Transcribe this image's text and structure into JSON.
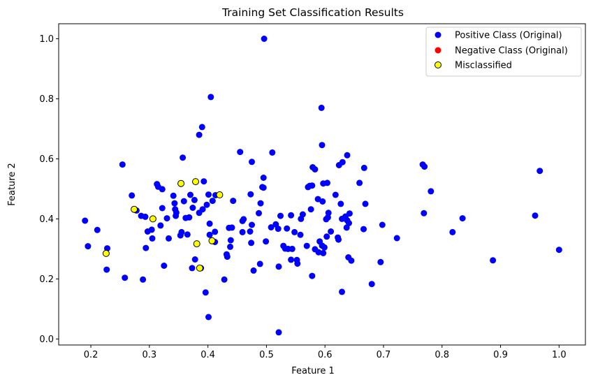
{
  "chart_data": {
    "type": "scatter",
    "title": "Training Set Classification Results",
    "xlabel": "Feature 1",
    "ylabel": "Feature 2",
    "xlim": [
      0.145,
      1.045
    ],
    "ylim": [
      -0.02,
      1.05
    ],
    "xticks": [
      "0.2",
      "0.3",
      "0.4",
      "0.5",
      "0.6",
      "0.7",
      "0.8",
      "0.9",
      "1.0"
    ],
    "yticks": [
      "0.0",
      "0.2",
      "0.4",
      "0.6",
      "0.8",
      "1.0"
    ],
    "grid": false,
    "legend_position": "top-right",
    "series": [
      {
        "name": "Positive Class (Original)",
        "color": "#0000ff",
        "points": [
          [
            0.19,
            0.394
          ],
          [
            0.195,
            0.309
          ],
          [
            0.211,
            0.363
          ],
          [
            0.227,
            0.231
          ],
          [
            0.228,
            0.302
          ],
          [
            0.254,
            0.581
          ],
          [
            0.258,
            0.204
          ],
          [
            0.27,
            0.478
          ],
          [
            0.278,
            0.428
          ],
          [
            0.286,
            0.41
          ],
          [
            0.289,
            0.198
          ],
          [
            0.293,
            0.407
          ],
          [
            0.294,
            0.303
          ],
          [
            0.297,
            0.358
          ],
          [
            0.304,
            0.364
          ],
          [
            0.305,
            0.335
          ],
          [
            0.313,
            0.516
          ],
          [
            0.315,
            0.507
          ],
          [
            0.319,
            0.378
          ],
          [
            0.322,
            0.436
          ],
          [
            0.322,
            0.499
          ],
          [
            0.325,
            0.244
          ],
          [
            0.33,
            0.402
          ],
          [
            0.333,
            0.335
          ],
          [
            0.341,
            0.477
          ],
          [
            0.343,
            0.452
          ],
          [
            0.344,
            0.432
          ],
          [
            0.345,
            0.41
          ],
          [
            0.346,
            0.421
          ],
          [
            0.353,
            0.345
          ],
          [
            0.355,
            0.356
          ],
          [
            0.357,
            0.604
          ],
          [
            0.359,
            0.459
          ],
          [
            0.362,
            0.403
          ],
          [
            0.365,
            0.348
          ],
          [
            0.368,
            0.405
          ],
          [
            0.37,
            0.48
          ],
          [
            0.373,
            0.236
          ],
          [
            0.374,
            0.437
          ],
          [
            0.377,
            0.463
          ],
          [
            0.378,
            0.265
          ],
          [
            0.385,
            0.68
          ],
          [
            0.385,
            0.42
          ],
          [
            0.388,
            0.236
          ],
          [
            0.39,
            0.706
          ],
          [
            0.391,
            0.432
          ],
          [
            0.393,
            0.525
          ],
          [
            0.396,
            0.155
          ],
          [
            0.398,
            0.447
          ],
          [
            0.401,
            0.073
          ],
          [
            0.401,
            0.481
          ],
          [
            0.403,
            0.347
          ],
          [
            0.403,
            0.384
          ],
          [
            0.405,
            0.806
          ],
          [
            0.408,
            0.46
          ],
          [
            0.412,
            0.357
          ],
          [
            0.412,
            0.323
          ],
          [
            0.413,
            0.479
          ],
          [
            0.428,
            0.198
          ],
          [
            0.432,
            0.282
          ],
          [
            0.433,
            0.274
          ],
          [
            0.436,
            0.37
          ],
          [
            0.438,
            0.307
          ],
          [
            0.439,
            0.329
          ],
          [
            0.441,
            0.371
          ],
          [
            0.443,
            0.46
          ],
          [
            0.455,
            0.623
          ],
          [
            0.459,
            0.393
          ],
          [
            0.459,
            0.356
          ],
          [
            0.461,
            0.399
          ],
          [
            0.472,
            0.358
          ],
          [
            0.473,
            0.482
          ],
          [
            0.474,
            0.32
          ],
          [
            0.475,
            0.38
          ],
          [
            0.475,
            0.59
          ],
          [
            0.478,
            0.228
          ],
          [
            0.487,
            0.419
          ],
          [
            0.489,
            0.25
          ],
          [
            0.49,
            0.452
          ],
          [
            0.493,
            0.506
          ],
          [
            0.495,
            0.537
          ],
          [
            0.495,
            0.504
          ],
          [
            0.496,
            1.0
          ],
          [
            0.499,
            0.325
          ],
          [
            0.508,
            0.372
          ],
          [
            0.51,
            0.621
          ],
          [
            0.516,
            0.382
          ],
          [
            0.52,
            0.367
          ],
          [
            0.521,
            0.022
          ],
          [
            0.521,
            0.241
          ],
          [
            0.524,
            0.41
          ],
          [
            0.529,
            0.31
          ],
          [
            0.532,
            0.301
          ],
          [
            0.535,
            0.368
          ],
          [
            0.537,
            0.3
          ],
          [
            0.542,
            0.264
          ],
          [
            0.542,
            0.412
          ],
          [
            0.544,
            0.3
          ],
          [
            0.548,
            0.356
          ],
          [
            0.552,
            0.263
          ],
          [
            0.553,
            0.251
          ],
          [
            0.558,
            0.347
          ],
          [
            0.559,
            0.4
          ],
          [
            0.562,
            0.415
          ],
          [
            0.569,
            0.31
          ],
          [
            0.571,
            0.506
          ],
          [
            0.574,
            0.51
          ],
          [
            0.576,
            0.432
          ],
          [
            0.578,
            0.511
          ],
          [
            0.578,
            0.21
          ],
          [
            0.579,
            0.572
          ],
          [
            0.583,
            0.299
          ],
          [
            0.583,
            0.565
          ],
          [
            0.588,
            0.466
          ],
          [
            0.589,
            0.289
          ],
          [
            0.591,
            0.325
          ],
          [
            0.594,
            0.77
          ],
          [
            0.595,
            0.311
          ],
          [
            0.595,
            0.646
          ],
          [
            0.596,
            0.458
          ],
          [
            0.597,
            0.286
          ],
          [
            0.597,
            0.518
          ],
          [
            0.599,
            0.305
          ],
          [
            0.602,
            0.399
          ],
          [
            0.603,
            0.341
          ],
          [
            0.604,
            0.52
          ],
          [
            0.605,
            0.405
          ],
          [
            0.606,
            0.42
          ],
          [
            0.61,
            0.358
          ],
          [
            0.618,
            0.48
          ],
          [
            0.622,
            0.338
          ],
          [
            0.623,
            0.331
          ],
          [
            0.624,
            0.579
          ],
          [
            0.627,
            0.45
          ],
          [
            0.629,
            0.157
          ],
          [
            0.629,
            0.4
          ],
          [
            0.63,
            0.589
          ],
          [
            0.635,
            0.408
          ],
          [
            0.637,
            0.371
          ],
          [
            0.638,
            0.395
          ],
          [
            0.638,
            0.612
          ],
          [
            0.64,
            0.272
          ],
          [
            0.641,
            0.386
          ],
          [
            0.642,
            0.418
          ],
          [
            0.645,
            0.261
          ],
          [
            0.659,
            0.52
          ],
          [
            0.666,
            0.366
          ],
          [
            0.667,
            0.57
          ],
          [
            0.669,
            0.45
          ],
          [
            0.68,
            0.183
          ],
          [
            0.695,
            0.256
          ],
          [
            0.698,
            0.38
          ],
          [
            0.723,
            0.336
          ],
          [
            0.767,
            0.581
          ],
          [
            0.769,
            0.419
          ],
          [
            0.77,
            0.574
          ],
          [
            0.781,
            0.492
          ],
          [
            0.818,
            0.356
          ],
          [
            0.835,
            0.402
          ],
          [
            0.887,
            0.262
          ],
          [
            0.959,
            0.411
          ],
          [
            0.967,
            0.56
          ],
          [
            1.0,
            0.297
          ]
        ]
      },
      {
        "name": "Negative Class (Original)",
        "color": "#ff0000",
        "points": []
      },
      {
        "name": "Misclassified",
        "color": "#ffff00",
        "edge_color": "#000000",
        "points": [
          [
            0.226,
            0.285
          ],
          [
            0.274,
            0.432
          ],
          [
            0.306,
            0.4
          ],
          [
            0.354,
            0.518
          ],
          [
            0.379,
            0.524
          ],
          [
            0.381,
            0.317
          ],
          [
            0.386,
            0.236
          ],
          [
            0.407,
            0.327
          ],
          [
            0.42,
            0.48
          ]
        ]
      }
    ]
  }
}
